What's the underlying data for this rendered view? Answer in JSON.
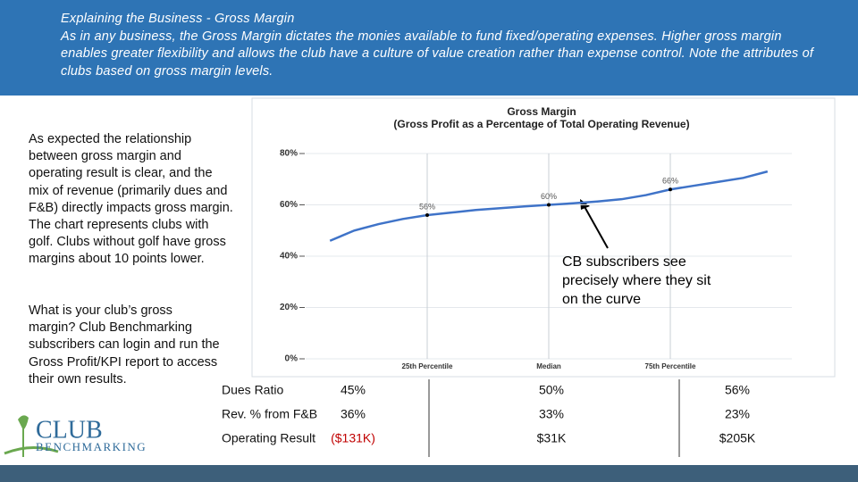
{
  "header": {
    "title": "Explaining the Business - Gross Margin",
    "text": "As in any business, the Gross Margin dictates the monies available to fund fixed/operating expenses. Higher gross margin enables greater flexibility and allows the club have a culture of value creation rather than expense control. Note the attributes of clubs based on gross margin levels."
  },
  "body": [
    "As expected the relationship between gross margin and operating result is clear, and the mix of revenue (primarily dues and F&B) directly impacts gross margin. The chart represents clubs with golf. Clubs without golf have gross margins about 10 points lower.",
    "What is your club’s gross margin? Club Benchmarking subscribers can login and run the Gross Profit/KPI report to access their own results."
  ],
  "callout": "CB subscribers see precisely where they sit on the curve",
  "chart_data": {
    "type": "line",
    "title": "Gross Margin",
    "subtitle": "(Gross Profit as a Percentage of Total Operating Revenue)",
    "x": [
      5,
      10,
      15,
      20,
      25,
      30,
      35,
      40,
      45,
      50,
      55,
      60,
      65,
      70,
      75,
      80,
      85,
      90,
      95
    ],
    "series": [
      {
        "name": "Gross Margin",
        "color": "#3f73c8",
        "values": [
          46,
          50,
          52.5,
          54.5,
          56,
          57,
          58,
          58.7,
          59.4,
          60,
          60.6,
          61.3,
          62.2,
          63.8,
          66,
          67.5,
          69,
          70.5,
          73
        ]
      }
    ],
    "annotations": [
      {
        "x": 25,
        "y": 56,
        "label": "56%"
      },
      {
        "x": 50,
        "y": 60,
        "label": "60%"
      },
      {
        "x": 75,
        "y": 66,
        "label": "66%"
      }
    ],
    "xlim": [
      0,
      100
    ],
    "xticks": [
      {
        "value": 25,
        "label": "25th Percentile"
      },
      {
        "value": 50,
        "label": "Median"
      },
      {
        "value": 75,
        "label": "75th Percentile"
      }
    ],
    "ylim": [
      0,
      80
    ],
    "yticks": [
      {
        "value": 0,
        "label": "0%"
      },
      {
        "value": 20,
        "label": "20%"
      },
      {
        "value": 40,
        "label": "40%"
      },
      {
        "value": 60,
        "label": "60%"
      },
      {
        "value": 80,
        "label": "80%"
      }
    ],
    "grid": true
  },
  "table": {
    "rows": [
      [
        "Dues Ratio",
        "45%",
        "50%",
        "56%"
      ],
      [
        "Rev. % from F&B",
        "36%",
        "33%",
        "23%"
      ],
      [
        "Operating Result",
        "($131K)",
        "$31K",
        "$205K"
      ]
    ]
  },
  "logo": {
    "top": "CLUB",
    "bottom": "BENCHMARKING"
  }
}
